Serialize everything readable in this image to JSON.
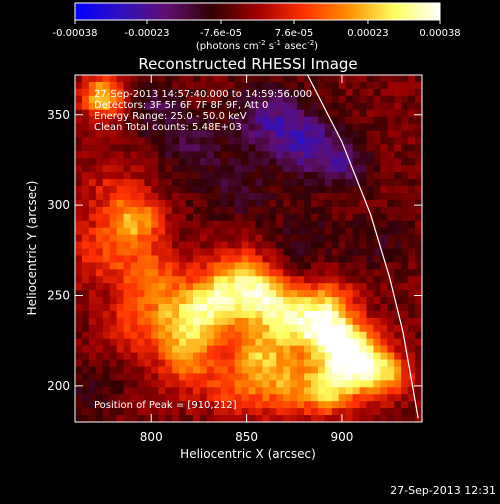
{
  "chart_data": {
    "type": "heatmap",
    "title": "Reconstructed RHESSI Image",
    "xlabel": "Heliocentric X (arcsec)",
    "ylabel": "Heliocentric Y (arcsec)",
    "xlim": [
      760,
      942
    ],
    "ylim": [
      180,
      372
    ],
    "x_ticks": [
      "800",
      "850",
      "900"
    ],
    "x_tick_values": [
      800,
      850,
      900
    ],
    "y_ticks": [
      "200",
      "250",
      "300",
      "350"
    ],
    "y_tick_values": [
      200,
      250,
      300,
      350
    ],
    "colorbar": {
      "tick_labels": [
        "-0.00038",
        "-0.00023",
        "-7.6e-05",
        "7.6e-05",
        "0.00023",
        "0.00038"
      ],
      "tick_values": [
        -0.00038,
        -0.00023,
        -7.6e-05,
        7.6e-05,
        0.00023,
        0.00038
      ],
      "range": [
        -0.00038,
        0.00038
      ],
      "units_label_part1": "(photons cm",
      "units_label_part2": "s",
      "units_label_part3": "asec",
      "units_label_end": ")",
      "units_exp_a": "-2",
      "units_exp_b": "-1",
      "units_exp_c": "-2",
      "colors": [
        "#0000ff",
        "#3010c0",
        "#601070",
        "#300000",
        "#a00000",
        "#ff3000",
        "#ff9000",
        "#ffff60",
        "#ffffff"
      ]
    },
    "annotations": [
      "27-Sep-2013 14:57:40.000 to 14:59:56.000",
      "Detectors: 3F 5F 6F 7F 8F 9F, Att 0",
      "Energy Range: 25.0 - 50.0 keV",
      "Clean    Total counts: 5.48E+03"
    ],
    "peak_label": "Position of Peak = [910,212]",
    "peak_position": [
      910,
      212
    ],
    "timestamp": "27-Sep-2013 12:31",
    "limb_curve": [
      [
        882,
        372
      ],
      [
        900,
        335
      ],
      [
        915,
        295
      ],
      [
        925,
        260
      ],
      [
        932,
        230
      ],
      [
        937,
        200
      ],
      [
        940,
        182
      ]
    ],
    "features": [
      {
        "x": 775,
        "y": 275,
        "s": 14,
        "v": 0.00012
      },
      {
        "x": 792,
        "y": 292,
        "s": 10,
        "v": 0.00022
      },
      {
        "x": 800,
        "y": 258,
        "s": 12,
        "v": 0.00018
      },
      {
        "x": 815,
        "y": 232,
        "s": 13,
        "v": 0.00024
      },
      {
        "x": 832,
        "y": 245,
        "s": 11,
        "v": 0.00026
      },
      {
        "x": 845,
        "y": 260,
        "s": 12,
        "v": 0.0002
      },
      {
        "x": 858,
        "y": 250,
        "s": 10,
        "v": 0.00022
      },
      {
        "x": 870,
        "y": 237,
        "s": 12,
        "v": 0.00024
      },
      {
        "x": 885,
        "y": 232,
        "s": 10,
        "v": 0.00016
      },
      {
        "x": 893,
        "y": 245,
        "s": 10,
        "v": 0.0002
      },
      {
        "x": 898,
        "y": 225,
        "s": 10,
        "v": 0.0003
      },
      {
        "x": 910,
        "y": 212,
        "s": 11,
        "v": 0.00038
      },
      {
        "x": 892,
        "y": 198,
        "s": 10,
        "v": 0.00026
      },
      {
        "x": 868,
        "y": 202,
        "s": 12,
        "v": 0.0002
      },
      {
        "x": 855,
        "y": 218,
        "s": 10,
        "v": 0.00018
      },
      {
        "x": 822,
        "y": 210,
        "s": 12,
        "v": 0.00014
      },
      {
        "x": 845,
        "y": 196,
        "s": 10,
        "v": 0.00012
      },
      {
        "x": 778,
        "y": 310,
        "s": 12,
        "v": 8e-05
      },
      {
        "x": 775,
        "y": 360,
        "s": 8,
        "v": 0.0003
      },
      {
        "x": 787,
        "y": 232,
        "s": 10,
        "v": 0.0001
      },
      {
        "x": 925,
        "y": 205,
        "s": 8,
        "v": 0.00016
      },
      {
        "x": 820,
        "y": 335,
        "s": 12,
        "v": -0.0001
      },
      {
        "x": 860,
        "y": 350,
        "s": 12,
        "v": -0.00016
      },
      {
        "x": 880,
        "y": 335,
        "s": 12,
        "v": -0.0002
      },
      {
        "x": 900,
        "y": 322,
        "s": 10,
        "v": -0.00014
      },
      {
        "x": 845,
        "y": 310,
        "s": 14,
        "v": -8e-05
      },
      {
        "x": 800,
        "y": 355,
        "s": 10,
        "v": -0.0001
      },
      {
        "x": 920,
        "y": 280,
        "s": 12,
        "v": -6e-05
      },
      {
        "x": 880,
        "y": 280,
        "s": 12,
        "v": -7e-05
      },
      {
        "x": 768,
        "y": 195,
        "s": 10,
        "v": -6e-05
      }
    ],
    "background_value": -4e-05
  }
}
